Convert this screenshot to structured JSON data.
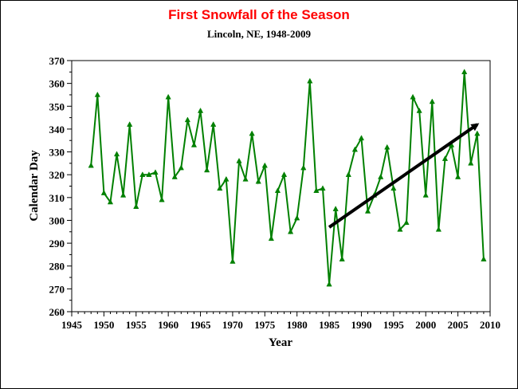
{
  "chart_data": {
    "type": "line",
    "title": "First Snowfall of the Season",
    "subtitle": "Lincoln, NE, 1948-2009",
    "xlabel": "Year",
    "ylabel": "Calendar Day",
    "xlim": [
      1945,
      2010
    ],
    "ylim": [
      260,
      370
    ],
    "x_ticks": [
      1945,
      1950,
      1955,
      1960,
      1965,
      1970,
      1975,
      1980,
      1985,
      1990,
      1995,
      2000,
      2005,
      2010
    ],
    "y_ticks": [
      260,
      270,
      280,
      290,
      300,
      310,
      320,
      330,
      340,
      350,
      360,
      370
    ],
    "grid": false,
    "legend": "none",
    "series": [
      {
        "color": "#008000",
        "x": [
          1948,
          1949,
          1950,
          1951,
          1952,
          1953,
          1954,
          1955,
          1956,
          1957,
          1958,
          1959,
          1960,
          1961,
          1962,
          1963,
          1964,
          1965,
          1966,
          1967,
          1968,
          1969,
          1970,
          1971,
          1972,
          1973,
          1974,
          1975,
          1976,
          1977,
          1978,
          1979,
          1980,
          1981,
          1982,
          1983,
          1984,
          1985,
          1986,
          1987,
          1988,
          1989,
          1990,
          1991,
          1992,
          1993,
          1994,
          1995,
          1996,
          1997,
          1998,
          1999,
          2000,
          2001,
          2002,
          2003,
          2004,
          2005,
          2006,
          2007,
          2008,
          2009
        ],
        "y": [
          324,
          355,
          312,
          308,
          329,
          311,
          342,
          306,
          320,
          320,
          321,
          309,
          354,
          319,
          323,
          344,
          333,
          348,
          322,
          342,
          314,
          318,
          282,
          326,
          318,
          338,
          317,
          324,
          292,
          313,
          320,
          295,
          301,
          323,
          361,
          313,
          314,
          272,
          305,
          283,
          320,
          331,
          336,
          304,
          311,
          319,
          332,
          314,
          296,
          299,
          354,
          348,
          311,
          352,
          296,
          327,
          333,
          319,
          365,
          325,
          338,
          283
        ]
      }
    ],
    "annotations": [
      {
        "type": "arrow",
        "color": "#000000",
        "from": [
          1985,
          297
        ],
        "to": [
          2008,
          342
        ]
      }
    ]
  },
  "colors": {
    "title": "#ff0000",
    "line": "#008000",
    "arrow": "#000000"
  }
}
